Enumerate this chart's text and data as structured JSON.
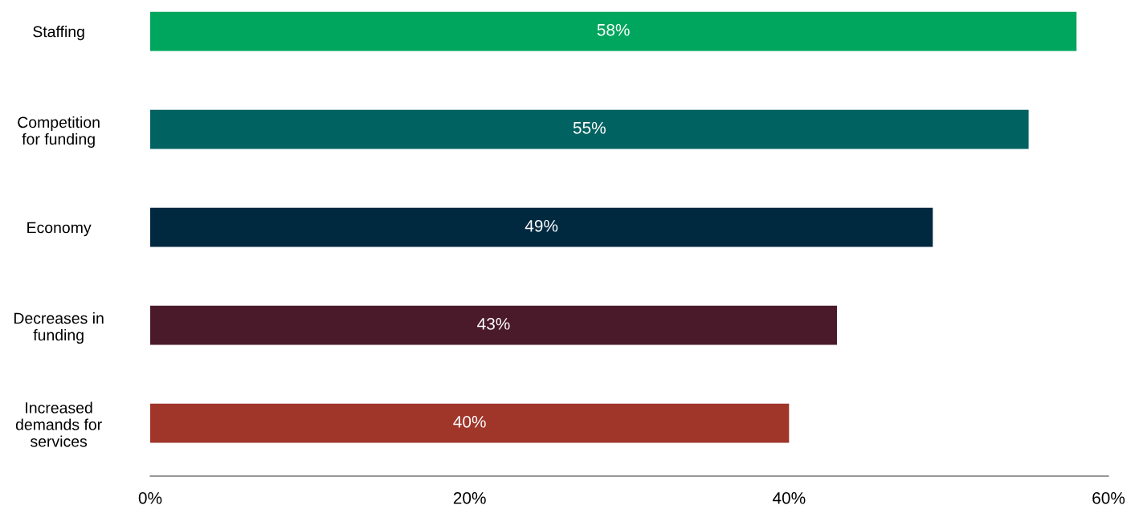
{
  "chart_data": {
    "type": "bar",
    "orientation": "horizontal",
    "categories": [
      "Staffing",
      "Competition\nfor funding",
      "Economy",
      "Decreases in\nfunding",
      "Increased\ndemands for\nservices"
    ],
    "values": [
      58,
      55,
      49,
      43,
      40
    ],
    "value_labels": [
      "58%",
      "55%",
      "49%",
      "43%",
      "40%"
    ],
    "colors": [
      "#00a65d",
      "#006261",
      "#002940",
      "#4a1a2a",
      "#a0362a"
    ],
    "xlim": [
      0,
      60
    ],
    "xticks": [
      {
        "value": 0,
        "label": "0%"
      },
      {
        "value": 20,
        "label": "20%"
      },
      {
        "value": 40,
        "label": "40%"
      },
      {
        "value": 60,
        "label": "60%"
      }
    ],
    "grid": false
  }
}
